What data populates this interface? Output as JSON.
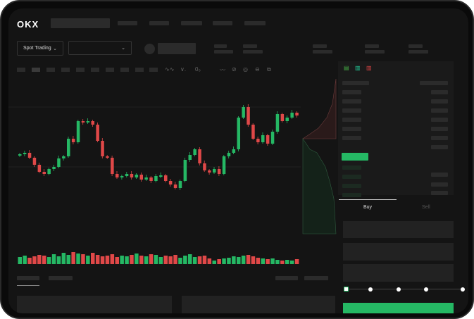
{
  "header": {
    "logo": "OKX"
  },
  "toolbar": {
    "market_select": "Spot Trading",
    "pair_select": ""
  },
  "chart": {
    "colors": {
      "up": "#25b864",
      "down": "#e04848"
    },
    "closes": [
      53,
      55,
      48,
      38,
      28,
      25,
      32,
      35,
      47,
      50,
      75,
      70,
      100,
      98,
      100,
      95,
      72,
      50,
      48,
      25,
      20,
      22,
      25,
      20,
      24,
      17,
      20,
      15,
      22,
      23,
      15,
      10,
      5,
      15,
      45,
      52,
      60,
      40,
      30,
      27,
      32,
      25,
      50,
      55,
      60,
      105,
      120,
      95,
      75,
      70,
      80,
      68,
      85,
      110,
      100,
      105,
      112,
      108
    ],
    "volumes": [
      10,
      12,
      9,
      11,
      13,
      12,
      10,
      14,
      11,
      16,
      13,
      17,
      15,
      14,
      12,
      16,
      13,
      11,
      12,
      14,
      10,
      12,
      11,
      13,
      15,
      12,
      11,
      14,
      13,
      10,
      12,
      11,
      13,
      9,
      12,
      14,
      10,
      11,
      12,
      8,
      5,
      7,
      8,
      9,
      11,
      10,
      12,
      13,
      11,
      9,
      8,
      7,
      8,
      6,
      5,
      6,
      5,
      7
    ]
  },
  "orderbook": {
    "colors": {
      "highlight": "#25b864"
    }
  },
  "trade": {
    "buy_label": "Buy",
    "sell_label": "Sell",
    "leverage_slider": 0
  }
}
